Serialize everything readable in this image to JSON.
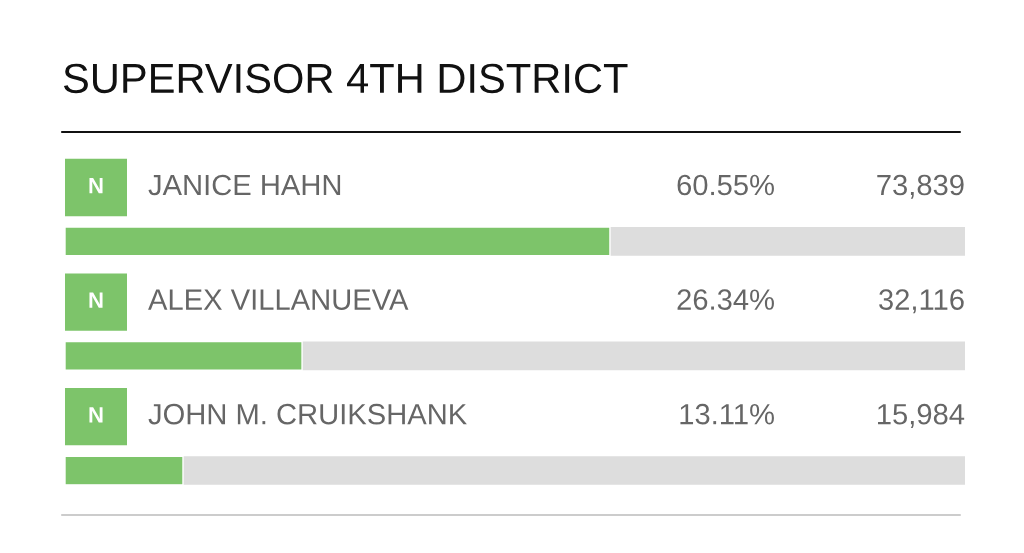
{
  "chart_data": {
    "type": "bar",
    "orientation": "horizontal",
    "title": "SUPERVISOR 4TH DISTRICT",
    "categories": [
      "JANICE HAHN",
      "ALEX VILLANUEVA",
      "JOHN M. CRUIKSHANK"
    ],
    "values": [
      60.55,
      26.34,
      13.11
    ],
    "value_labels": [
      "60.55%",
      "26.34%",
      "13.11%"
    ],
    "color": "#7dc46a",
    "xlim": [
      0,
      100
    ],
    "annotations": [
      "N",
      "N",
      "N",
      "73,839",
      "32,116",
      "15,984"
    ]
  }
}
